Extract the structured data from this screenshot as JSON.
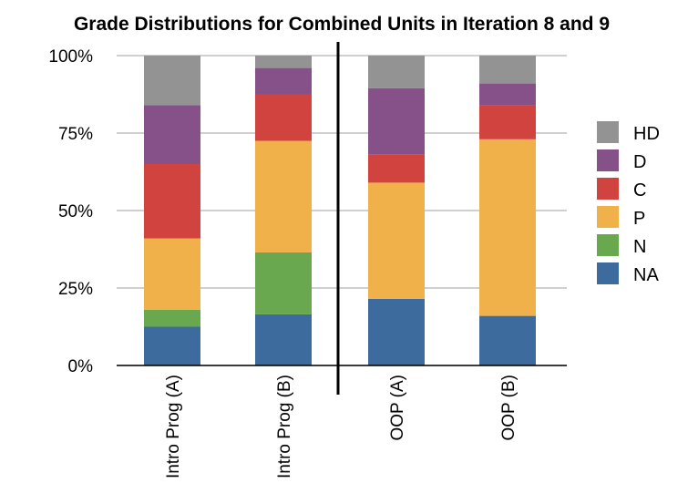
{
  "chart_data": {
    "type": "bar",
    "stacked": true,
    "title": "Grade Distributions for Combined Units in Iteration 8 and 9",
    "categories": [
      "Intro Prog (A)",
      "Intro Prog (B)",
      "OOP (A)",
      "OOP (B)"
    ],
    "yticks": [
      "0%",
      "25%",
      "50%",
      "75%",
      "100%"
    ],
    "ylim": [
      0,
      100
    ],
    "grid": true,
    "legend_position": "right",
    "separator_after_category": 1,
    "series": [
      {
        "name": "NA",
        "color": "#3d6b9e",
        "values": [
          12.5,
          16.5,
          21.5,
          16
        ]
      },
      {
        "name": "N",
        "color": "#6aa84f",
        "values": [
          5.5,
          20,
          0,
          0
        ]
      },
      {
        "name": "P",
        "color": "#f0b04a",
        "values": [
          23,
          36,
          37.5,
          57
        ]
      },
      {
        "name": "C",
        "color": "#d0433e",
        "values": [
          24,
          15,
          9,
          11
        ]
      },
      {
        "name": "D",
        "color": "#865089",
        "values": [
          19,
          8.5,
          21.5,
          7
        ]
      },
      {
        "name": "HD",
        "color": "#939393",
        "values": [
          16,
          4,
          10.5,
          9
        ]
      }
    ]
  }
}
